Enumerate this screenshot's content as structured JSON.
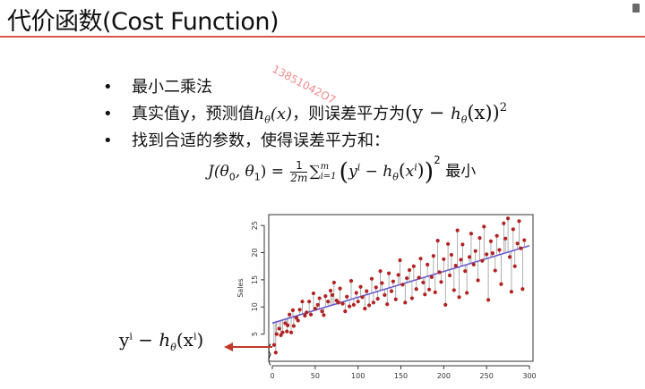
{
  "slide": {
    "title": "代价函数(Cost Function)",
    "watermark": "13851042O7"
  },
  "bullets": [
    {
      "symbol": "•",
      "text": "最小二乘法"
    },
    {
      "symbol": "•",
      "text_a": "真实值y，预测值",
      "h": "h",
      "theta": "θ",
      "x": "(x)",
      "text_b": "，则误差平方为",
      "expr": "(y − ",
      "expr_end": "(x))",
      "sq": "2"
    },
    {
      "symbol": "•",
      "text": "找到合适的参数，使得误差平方和："
    }
  ],
  "formula": {
    "lhs": "J(θ",
    "sub0": "0",
    "comma": ", θ",
    "sub1": "1",
    "rhs_eq": ") =",
    "frac_num": "1",
    "frac_den": "2m",
    "sigma": "∑",
    "sigma_sup": "m",
    "sigma_sub": "i=1",
    "open": "(",
    "y": "y",
    "sup_i": "i",
    "minus_h": " − h",
    "theta_sub": "θ",
    "inner_open": "(",
    "x": "x",
    "sup_i2": "i",
    "inner_close": ")",
    "close": ")",
    "square": "2",
    "suffix": " 最小"
  },
  "residual_label": {
    "y": "y",
    "sup": "i",
    "minus": " − ",
    "h": "h",
    "theta": "θ",
    "open": "(",
    "x": "x",
    "sup2": "i",
    "close": ")"
  },
  "chart_data": {
    "type": "scatter",
    "title": "",
    "xlabel": "",
    "ylabel": "Sales",
    "xlim": [
      0,
      300
    ],
    "ylim": [
      0,
      27
    ],
    "xticks": [
      0,
      50,
      100,
      150,
      200,
      250,
      300
    ],
    "yticks": [
      5,
      10,
      15,
      20,
      25
    ],
    "grid": false,
    "regression": {
      "intercept": 7.03,
      "slope": 0.0475,
      "color": "#6a5acd"
    },
    "point_color": "#b22222",
    "residual_color": "#9a9a9a",
    "points": [
      [
        2,
        3
      ],
      [
        4,
        1.6
      ],
      [
        5,
        5
      ],
      [
        8,
        6
      ],
      [
        10,
        4.8
      ],
      [
        12,
        5.3
      ],
      [
        15,
        7
      ],
      [
        17,
        5.5
      ],
      [
        18,
        6.6
      ],
      [
        20,
        8.6
      ],
      [
        22,
        5.3
      ],
      [
        24,
        9.4
      ],
      [
        25,
        6.5
      ],
      [
        28,
        8
      ],
      [
        30,
        7.5
      ],
      [
        32,
        9.5
      ],
      [
        35,
        11
      ],
      [
        38,
        8.4
      ],
      [
        40,
        9
      ],
      [
        43,
        11
      ],
      [
        45,
        8.6
      ],
      [
        48,
        12.5
      ],
      [
        50,
        9.7
      ],
      [
        53,
        10.4
      ],
      [
        55,
        11.6
      ],
      [
        58,
        9.2
      ],
      [
        60,
        8.5
      ],
      [
        62,
        12
      ],
      [
        65,
        11
      ],
      [
        68,
        13
      ],
      [
        70,
        12.2
      ],
      [
        72,
        14.5
      ],
      [
        75,
        11.2
      ],
      [
        77,
        10.8
      ],
      [
        79,
        13.4
      ],
      [
        82,
        10.6
      ],
      [
        85,
        9.2
      ],
      [
        87,
        11.9
      ],
      [
        90,
        10.1
      ],
      [
        92,
        14.8
      ],
      [
        95,
        10.4
      ],
      [
        98,
        12.6
      ],
      [
        100,
        11
      ],
      [
        103,
        13.7
      ],
      [
        105,
        11.8
      ],
      [
        108,
        9.7
      ],
      [
        110,
        12.9
      ],
      [
        113,
        10.3
      ],
      [
        116,
        15.2
      ],
      [
        118,
        10.8
      ],
      [
        121,
        13.6
      ],
      [
        123,
        11.5
      ],
      [
        126,
        16.6
      ],
      [
        128,
        14.4
      ],
      [
        131,
        12.2
      ],
      [
        134,
        10.5
      ],
      [
        136,
        16.2
      ],
      [
        139,
        12.9
      ],
      [
        141,
        14.7
      ],
      [
        144,
        11.4
      ],
      [
        147,
        15.9
      ],
      [
        149,
        18.6
      ],
      [
        152,
        14.1
      ],
      [
        155,
        10.8
      ],
      [
        157,
        15.3
      ],
      [
        160,
        16.8
      ],
      [
        163,
        11.6
      ],
      [
        165,
        17.5
      ],
      [
        168,
        13.3
      ],
      [
        171,
        15.4
      ],
      [
        173,
        18.9
      ],
      [
        176,
        14.5
      ],
      [
        178,
        12.3
      ],
      [
        181,
        17.8
      ],
      [
        183,
        13.2
      ],
      [
        186,
        15.5
      ],
      [
        188,
        19.4
      ],
      [
        190,
        12.7
      ],
      [
        193,
        22.2
      ],
      [
        195,
        16.4
      ],
      [
        197,
        14.6
      ],
      [
        200,
        18.8
      ],
      [
        202,
        10.4
      ],
      [
        205,
        21.6
      ],
      [
        207,
        15.8
      ],
      [
        209,
        19.6
      ],
      [
        212,
        13.1
      ],
      [
        214,
        17.6
      ],
      [
        216,
        24.1
      ],
      [
        218,
        11.8
      ],
      [
        220,
        18.7
      ],
      [
        222,
        21.5
      ],
      [
        225,
        16.6
      ],
      [
        227,
        12.6
      ],
      [
        230,
        19.2
      ],
      [
        232,
        23.5
      ],
      [
        235,
        17.8
      ],
      [
        237,
        20.3
      ],
      [
        240,
        14.9
      ],
      [
        242,
        22.7
      ],
      [
        245,
        18.5
      ],
      [
        247,
        24.8
      ],
      [
        250,
        19.7
      ],
      [
        252,
        11.3
      ],
      [
        255,
        22.1
      ],
      [
        257,
        19.9
      ],
      [
        260,
        16.7
      ],
      [
        262,
        23.1
      ],
      [
        265,
        20.5
      ],
      [
        267,
        14.2
      ],
      [
        270,
        25.4
      ],
      [
        272,
        22.6
      ],
      [
        275,
        26.3
      ],
      [
        277,
        19.2
      ],
      [
        279,
        12.8
      ],
      [
        281,
        24.3
      ],
      [
        283,
        17.5
      ],
      [
        286,
        21.7
      ],
      [
        288,
        25.8
      ],
      [
        290,
        20.8
      ],
      [
        292,
        13.3
      ],
      [
        294,
        22.3
      ]
    ]
  }
}
